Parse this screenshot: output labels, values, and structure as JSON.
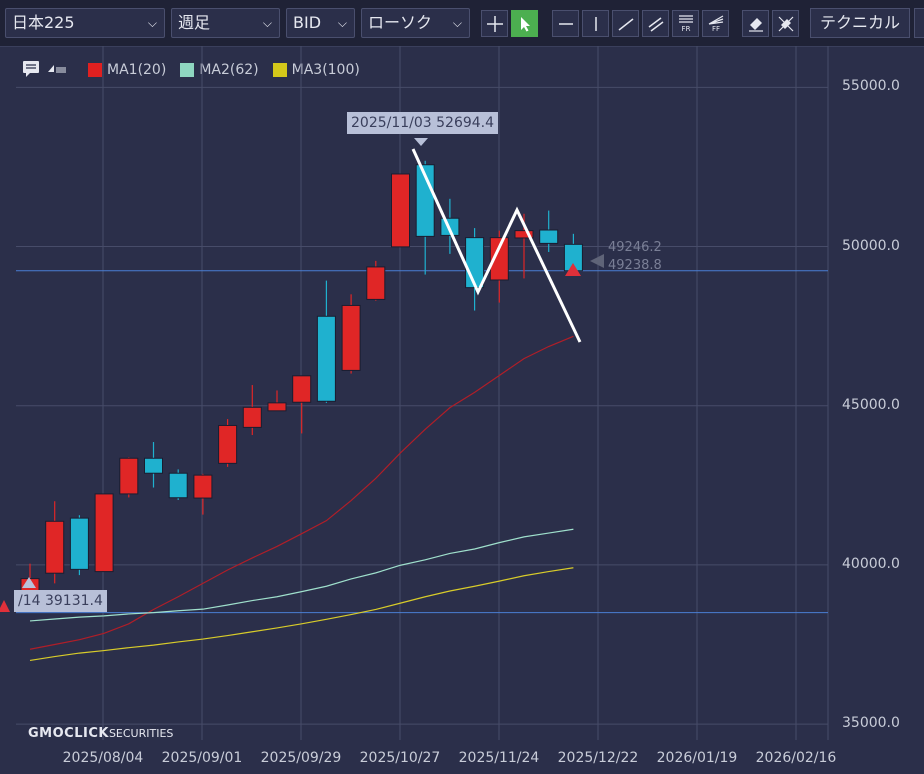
{
  "toolbar": {
    "symbol": "日本225",
    "period": "週足",
    "side": "BID",
    "chart_type": "ローソク",
    "technical_label": "テクニカル",
    "tools": [
      {
        "name": "crosshair-icon"
      },
      {
        "name": "pointer-icon"
      },
      {
        "name": "horizontal-line-icon"
      },
      {
        "name": "vertical-line-icon"
      },
      {
        "name": "trend-line-icon"
      },
      {
        "name": "parallel-line-icon"
      },
      {
        "name": "fibonacci-retracement-icon",
        "text": "FR"
      },
      {
        "name": "fibonacci-fan-icon",
        "text": "FF"
      },
      {
        "name": "eraser-icon"
      },
      {
        "name": "clear-all-icon"
      }
    ]
  },
  "legend": {
    "items": [
      {
        "label": "MA1(20)",
        "color": "#e02020"
      },
      {
        "label": "MA2(62)",
        "color": "#8fd6c0"
      },
      {
        "label": "MA3(100)",
        "color": "#d4c81a"
      }
    ]
  },
  "tooltip_high": "2025/11/03 52694.4",
  "tooltip_low": "/14 39131.4",
  "price_labels": [
    "49246.2",
    "49238.8"
  ],
  "brand": {
    "main": "GMOCLICK",
    "sub": "SECURITIES"
  },
  "colors": {
    "up": "#e02626",
    "down": "#1fb1cf",
    "bg": "#2b2f4a",
    "grid": "#474c69",
    "hline": "#4a7fd4"
  },
  "chart_data": {
    "type": "candlestick",
    "title": "",
    "y_ticks": [
      "55000.0",
      "50000.0",
      "45000.0",
      "40000.0",
      "35000.0"
    ],
    "x_ticks": [
      "2025/08/04",
      "2025/09/01",
      "2025/09/29",
      "2025/10/27",
      "2025/11/24",
      "2025/12/22",
      "2026/01/19",
      "2026/02/16"
    ],
    "ylim": [
      34500,
      56300
    ],
    "horizontal_lines": [
      49238.8,
      38500
    ],
    "candles": [
      {
        "o": 39131.4,
        "c": 39570,
        "h": 40040,
        "l": 39131.4
      },
      {
        "o": 39740,
        "c": 41370,
        "h": 42000,
        "l": 39420
      },
      {
        "o": 41470,
        "c": 39860,
        "h": 41560,
        "l": 39680
      },
      {
        "o": 39790,
        "c": 42230,
        "h": 42230,
        "l": 39790
      },
      {
        "o": 42230,
        "c": 43350,
        "h": 43380,
        "l": 42120
      },
      {
        "o": 43350,
        "c": 42880,
        "h": 43860,
        "l": 42430
      },
      {
        "o": 42880,
        "c": 42110,
        "h": 43000,
        "l": 42040
      },
      {
        "o": 42100,
        "c": 42820,
        "h": 42860,
        "l": 41580
      },
      {
        "o": 43190,
        "c": 44380,
        "h": 44580,
        "l": 43080
      },
      {
        "o": 44320,
        "c": 44950,
        "h": 45650,
        "l": 44080
      },
      {
        "o": 44840,
        "c": 45090,
        "h": 45480,
        "l": 44840
      },
      {
        "o": 45110,
        "c": 45940,
        "h": 45940,
        "l": 44130
      },
      {
        "o": 47810,
        "c": 45140,
        "h": 48930,
        "l": 45090
      },
      {
        "o": 46110,
        "c": 48150,
        "h": 48500,
        "l": 46010
      },
      {
        "o": 48340,
        "c": 49360,
        "h": 49550,
        "l": 48300
      },
      {
        "o": 49990,
        "c": 52280,
        "h": 52280,
        "l": 49990
      },
      {
        "o": 52570,
        "c": 50320,
        "h": 52694.4,
        "l": 49120
      },
      {
        "o": 50890,
        "c": 50350,
        "h": 51500,
        "l": 49770
      },
      {
        "o": 50280,
        "c": 48710,
        "h": 50580,
        "l": 47990
      },
      {
        "o": 48950,
        "c": 50280,
        "h": 50500,
        "l": 48240
      },
      {
        "o": 50270,
        "c": 50500,
        "h": 51030,
        "l": 49000
      },
      {
        "o": 50520,
        "c": 50100,
        "h": 51130,
        "l": 49830
      },
      {
        "o": 50070,
        "c": 49238.8,
        "h": 50400,
        "l": 49140
      }
    ],
    "series": [
      {
        "name": "MA1(20)",
        "values": [
          37350,
          37500,
          37650,
          37850,
          38150,
          38600,
          39000,
          39420,
          39840,
          40220,
          40580,
          40980,
          41390,
          42020,
          42720,
          43520,
          44260,
          44940,
          45420,
          45950,
          46480,
          46860,
          47180
        ]
      },
      {
        "name": "MA2(62)",
        "values": [
          38240,
          38300,
          38360,
          38400,
          38460,
          38500,
          38560,
          38610,
          38740,
          38880,
          39000,
          39160,
          39330,
          39560,
          39750,
          39990,
          40160,
          40360,
          40500,
          40700,
          40880,
          41000,
          41120
        ]
      },
      {
        "name": "MA3(100)",
        "values": [
          37000,
          37120,
          37230,
          37310,
          37400,
          37480,
          37580,
          37670,
          37780,
          37900,
          38020,
          38150,
          38290,
          38440,
          38600,
          38800,
          39000,
          39180,
          39330,
          39490,
          39660,
          39790,
          39910
        ]
      }
    ]
  }
}
